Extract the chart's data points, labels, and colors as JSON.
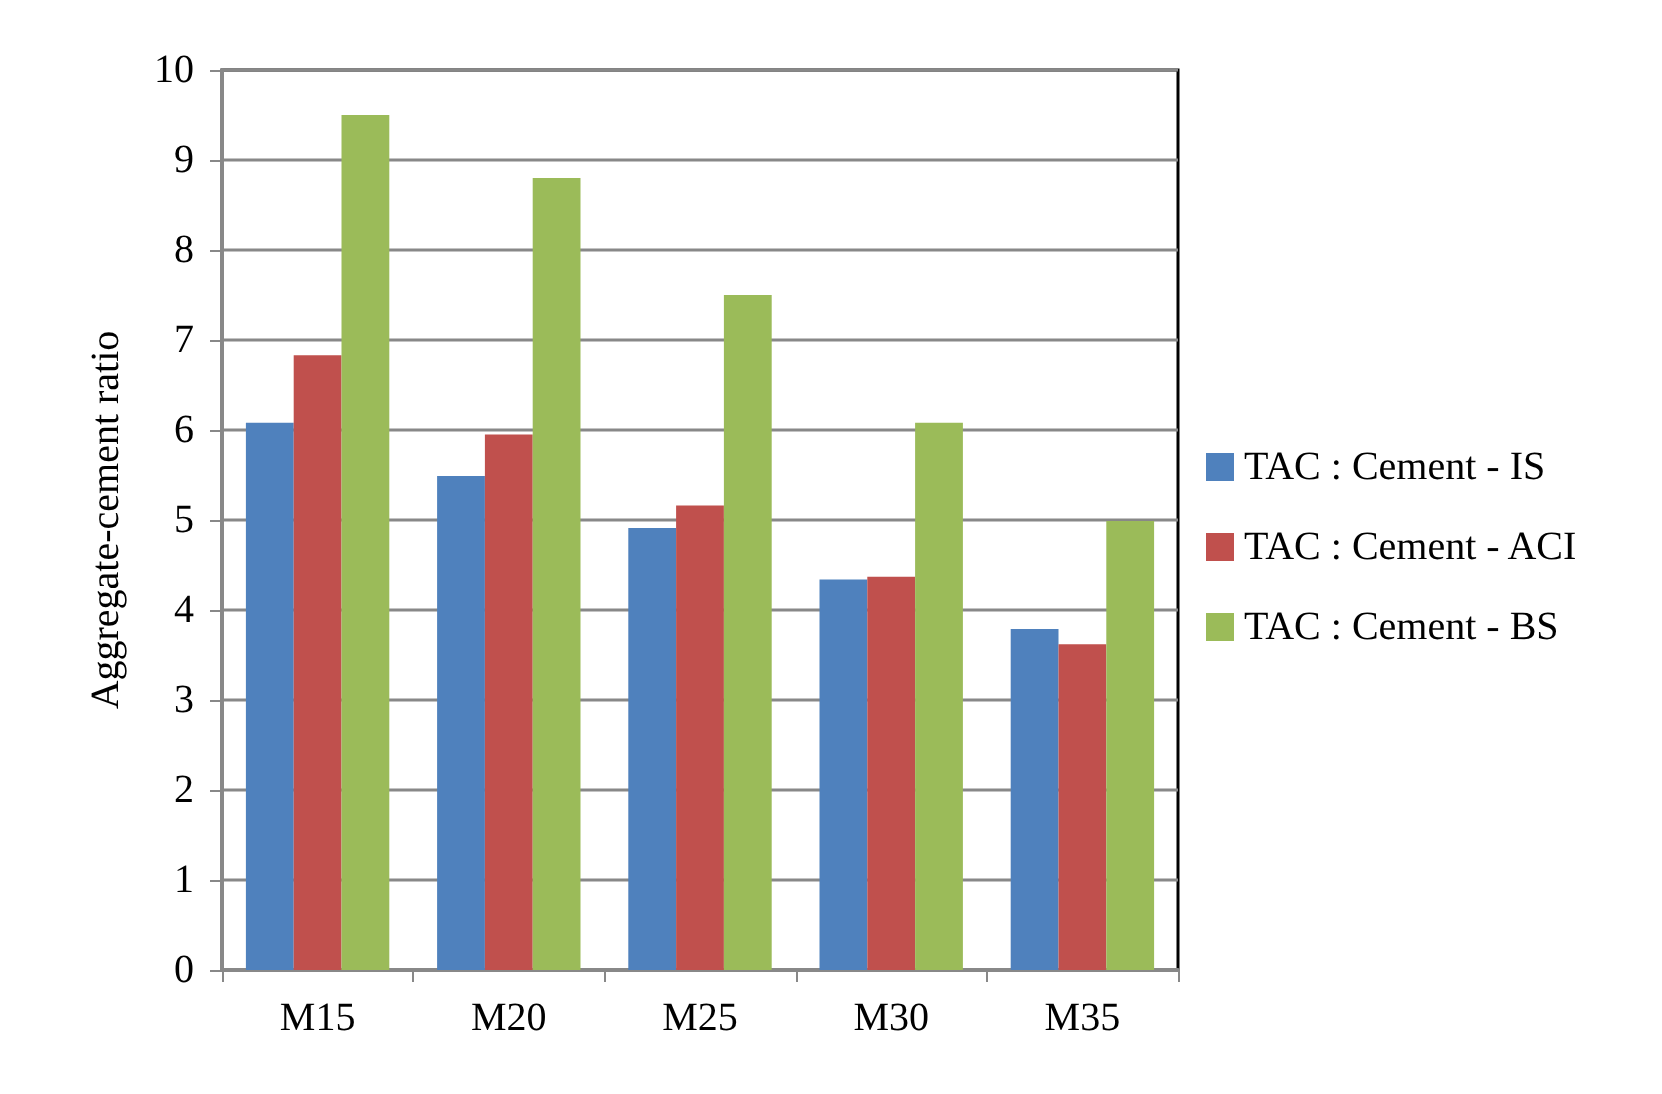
{
  "chart_data": {
    "type": "bar",
    "ylabel": "Aggregate-cement ratio",
    "categories": [
      "M15",
      "M20",
      "M25",
      "M30",
      "M35"
    ],
    "series": [
      {
        "name": "TAC : Cement - IS",
        "color": "#4f81bd",
        "values": [
          6.08,
          5.49,
          4.91,
          4.34,
          3.79
        ]
      },
      {
        "name": "TAC : Cement - ACI",
        "color": "#c0504d",
        "values": [
          6.83,
          5.95,
          5.16,
          4.37,
          3.62
        ]
      },
      {
        "name": "TAC : Cement - BS",
        "color": "#9bbb59",
        "values": [
          9.5,
          8.8,
          7.5,
          6.08,
          4.99
        ]
      }
    ],
    "ylim": [
      0,
      10
    ],
    "yticks": [
      0,
      1,
      2,
      3,
      4,
      5,
      6,
      7,
      8,
      9,
      10
    ],
    "grid": "y",
    "legend": "right"
  }
}
